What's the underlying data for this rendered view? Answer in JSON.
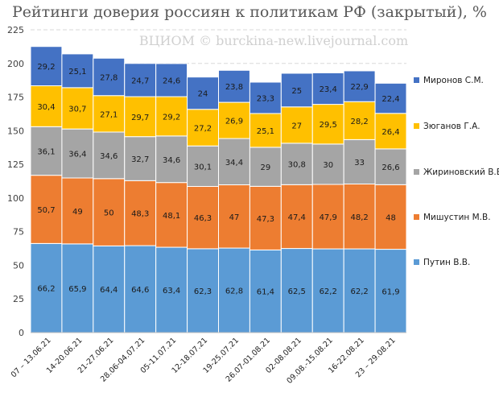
{
  "chart_data": {
    "type": "bar",
    "stacked": true,
    "title": "Рейтинги доверия россиян к политикам РФ (закрытый), %",
    "watermark": "ВЦИОМ © burckina-new.livejournal.com",
    "categories": [
      "07 – 13.06.21",
      "14-20.06.21",
      "21-27.06.21",
      "28.06-04.07.21",
      "05-11.07.21",
      "12-18.07.21",
      "19-25.07.21",
      "26.07-01.08.21",
      "02-08.08.21",
      "09.08.-15.08.21",
      "16-22.08.21",
      "23 – 29.08.21"
    ],
    "ylim": [
      0,
      225
    ],
    "yticks": [
      0,
      25,
      50,
      75,
      100,
      125,
      150,
      175,
      200,
      225
    ],
    "legend_position": "right",
    "series": [
      {
        "name": "Путин В.В.",
        "color": "#5b9bd5",
        "values": [
          66.2,
          65.9,
          64.4,
          64.6,
          63.4,
          62.3,
          62.8,
          61.4,
          62.5,
          62.2,
          62.2,
          61.9
        ],
        "labels": [
          "66,2",
          "65,9",
          "64,4",
          "64,6",
          "63,4",
          "62,3",
          "62,8",
          "61,4",
          "62,5",
          "62,2",
          "62,2",
          "61,9"
        ]
      },
      {
        "name": "Мишустин М.В.",
        "color": "#ed7d31",
        "values": [
          50.7,
          49,
          50,
          48.3,
          48.1,
          46.3,
          47,
          47.3,
          47.4,
          47.9,
          48.2,
          48
        ],
        "labels": [
          "50,7",
          "49",
          "50",
          "48,3",
          "48,1",
          "46,3",
          "47",
          "47,3",
          "47,4",
          "47,9",
          "48,2",
          "48"
        ]
      },
      {
        "name": "Жириновский В.В.",
        "color": "#a5a5a5",
        "values": [
          36.1,
          36.4,
          34.6,
          32.7,
          34.6,
          30.1,
          34.4,
          29,
          30.8,
          30,
          33,
          26.6
        ],
        "labels": [
          "36,1",
          "36,4",
          "34,6",
          "32,7",
          "34,6",
          "30,1",
          "34,4",
          "29",
          "30,8",
          "30",
          "33",
          "26,6"
        ]
      },
      {
        "name": "Зюганов Г.А.",
        "color": "#ffc000",
        "values": [
          30.4,
          30.7,
          27.1,
          29.7,
          29.2,
          27.2,
          26.9,
          25.1,
          27,
          29.5,
          28.2,
          26.4
        ],
        "labels": [
          "30,4",
          "30,7",
          "27,1",
          "29,7",
          "29,2",
          "27,2",
          "26,9",
          "25,1",
          "27",
          "29,5",
          "28,2",
          "26,4"
        ]
      },
      {
        "name": "Миронов С.М.",
        "color": "#4472c4",
        "values": [
          29.2,
          25.1,
          27.8,
          24.7,
          24.6,
          24,
          23.8,
          23.3,
          25,
          23.4,
          22.9,
          22.4
        ],
        "labels": [
          "29,2",
          "25,1",
          "27,8",
          "24,7",
          "24,6",
          "24",
          "23,8",
          "23,3",
          "25",
          "23,4",
          "22,9",
          "22,4"
        ]
      }
    ]
  }
}
